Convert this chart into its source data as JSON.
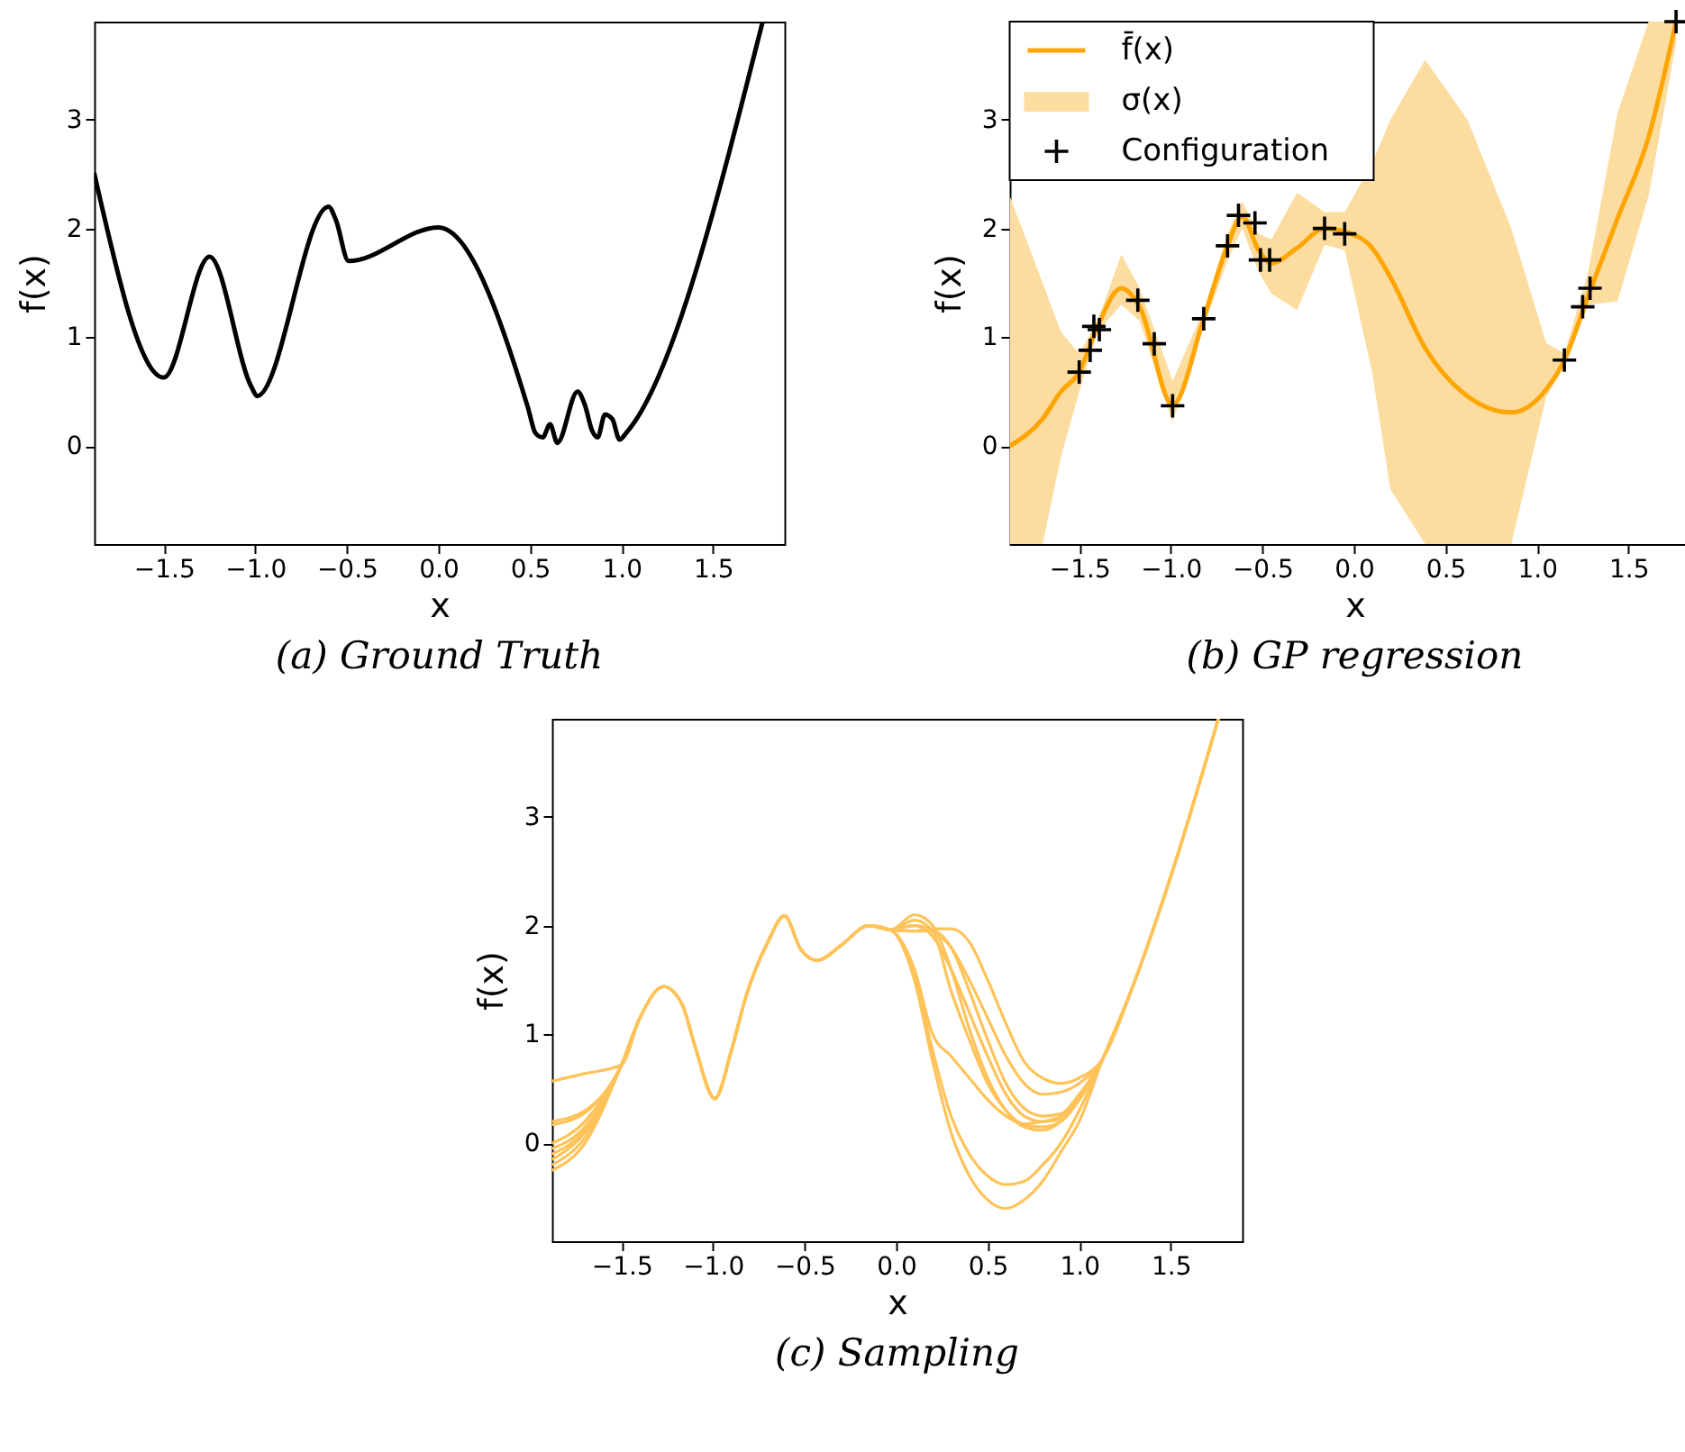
{
  "chart_data": [
    {
      "type": "line",
      "title": "(a) Ground Truth",
      "xlabel": "x",
      "ylabel": "f(x)",
      "xlim": [
        -1.88,
        1.89
      ],
      "ylim": [
        -0.9,
        3.9
      ],
      "grid": false,
      "xticks": [
        {
          "value": -1.5,
          "label": "−1.5"
        },
        {
          "value": -1,
          "label": "−1.0"
        },
        {
          "value": -0.5,
          "label": "−0.5"
        },
        {
          "value": 0,
          "label": "0.0"
        },
        {
          "value": 0.5,
          "label": "0.5"
        },
        {
          "value": 1,
          "label": "1.0"
        },
        {
          "value": 1.5,
          "label": "1.5"
        }
      ],
      "yticks": [
        0,
        1,
        2,
        3
      ],
      "series": [
        {
          "color": "#000000",
          "x": [
            -1.88,
            -1.5,
            -1.25,
            -1.02,
            -0.99,
            -0.6,
            -0.56,
            -0.49,
            0,
            0.49,
            0.53,
            0.57,
            0.61,
            0.65,
            0.76,
            0.8,
            0.84,
            0.87,
            0.91,
            0.95,
            0.99,
            1.03,
            1.77
          ],
          "values": [
            2.51,
            0.63,
            1.74,
            0.54,
            0.46,
            2.2,
            2.08,
            1.7,
            2.01,
            0.35,
            0.12,
            0.08,
            0.2,
            0.03,
            0.5,
            0.38,
            0.14,
            0.08,
            0.29,
            0.25,
            0.06,
            0.13,
            3.89
          ]
        }
      ]
    },
    {
      "type": "line",
      "title": "(b) GP regression",
      "xlabel": "x",
      "ylabel": "f(x)",
      "xlim": [
        -1.88,
        1.89
      ],
      "ylim": [
        -0.9,
        3.9
      ],
      "grid": false,
      "legend": "top left",
      "xticks": [
        {
          "value": -1.5,
          "label": "−1.5"
        },
        {
          "value": -1,
          "label": "−1.0"
        },
        {
          "value": -0.5,
          "label": "−0.5"
        },
        {
          "value": 0,
          "label": "0.0"
        },
        {
          "value": 0.5,
          "label": "0.5"
        },
        {
          "value": 1,
          "label": "1.0"
        },
        {
          "value": 1.5,
          "label": "1.5"
        }
      ],
      "yticks": [
        0,
        1,
        2,
        3
      ],
      "series": [
        {
          "name": "f̄(x)",
          "type": "line",
          "color": "#ffa500",
          "x": [
            -1.88,
            -1.7,
            -1.6,
            -1.5,
            -1.4,
            -1.27,
            -1.17,
            -0.99,
            -0.82,
            -0.69,
            -0.61,
            -0.52,
            -0.45,
            -0.31,
            -0.16,
            -0.05,
            0.1,
            0.2,
            0.39,
            0.62,
            0.86,
            1.05,
            1.15,
            1.28,
            1.44,
            1.61,
            1.76
          ],
          "values": [
            0,
            0.25,
            0.5,
            0.68,
            1.1,
            1.45,
            1.28,
            0.38,
            1.17,
            1.84,
            2.11,
            1.8,
            1.68,
            1.82,
            2.0,
            1.97,
            1.82,
            1.55,
            0.9,
            0.46,
            0.31,
            0.52,
            0.79,
            1.38,
            2.09,
            2.84,
            3.9
          ],
          "lower": [
            -0.9,
            -0.9,
            -0.1,
            0.5,
            1.05,
            1.3,
            1.15,
            0.22,
            1.1,
            1.7,
            2.0,
            1.6,
            1.4,
            1.25,
            1.85,
            1.8,
            0.68,
            -0.4,
            -0.9,
            -0.9,
            -0.9,
            0.45,
            0.73,
            1.3,
            1.33,
            2.3,
            3.7
          ],
          "upper": [
            2.3,
            1.5,
            1.05,
            0.85,
            1.15,
            1.76,
            1.45,
            0.6,
            1.25,
            1.95,
            2.25,
            1.95,
            1.9,
            2.33,
            2.15,
            2.15,
            2.6,
            3.0,
            3.55,
            3.0,
            2.0,
            0.95,
            0.85,
            1.6,
            3.06,
            3.9,
            3.9
          ]
        },
        {
          "name": "σ(x)",
          "type": "area",
          "color": "#fddca0"
        },
        {
          "name": "Configuration",
          "type": "scatter",
          "marker": "cross",
          "color": "#000000",
          "x": [
            -1.5,
            -1.44,
            -1.42,
            -1.39,
            -1.18,
            -1.09,
            -0.99,
            -0.82,
            -0.69,
            -0.63,
            -0.54,
            -0.51,
            -0.46,
            -0.16,
            -0.05,
            1.15,
            1.25,
            1.29,
            1.76
          ],
          "values": [
            0.68,
            0.88,
            1.1,
            1.07,
            1.34,
            0.94,
            0.37,
            1.17,
            1.84,
            2.12,
            2.05,
            1.71,
            1.71,
            2.0,
            1.95,
            0.79,
            1.28,
            1.45,
            3.9
          ]
        }
      ]
    },
    {
      "type": "line",
      "title": "(c) Sampling",
      "xlabel": "x",
      "ylabel": "f(x)",
      "xlim": [
        -1.88,
        1.89
      ],
      "ylim": [
        -0.9,
        3.9
      ],
      "grid": false,
      "xticks": [
        {
          "value": -1.5,
          "label": "−1.5"
        },
        {
          "value": -1,
          "label": "−1.0"
        },
        {
          "value": -0.5,
          "label": "−0.5"
        },
        {
          "value": 0,
          "label": "0.0"
        },
        {
          "value": 0.5,
          "label": "0.5"
        },
        {
          "value": 1,
          "label": "1.0"
        },
        {
          "value": 1.5,
          "label": "1.5"
        }
      ],
      "yticks": [
        0,
        1,
        2,
        3
      ],
      "x": [
        -1.88,
        -1.7,
        -1.5,
        -1.4,
        -1.27,
        -1.17,
        -1.1,
        -0.99,
        -0.9,
        -0.82,
        -0.7,
        -0.61,
        -0.52,
        -0.43,
        -0.3,
        -0.15,
        -0.03,
        0.1,
        0.2,
        0.3,
        0.4,
        0.5,
        0.6,
        0.7,
        0.8,
        0.9,
        1.0,
        1.13,
        1.29,
        1.5,
        1.76
      ],
      "series": [
        {
          "color": "#ffc35a",
          "values": [
            0.57,
            0.64,
            0.72,
            1.15,
            1.44,
            1.28,
            0.9,
            0.41,
            0.85,
            1.35,
            1.85,
            2.09,
            1.78,
            1.68,
            1.82,
            2.0,
            1.96,
            1.5,
            0.75,
            0.1,
            -0.3,
            -0.52,
            -0.6,
            -0.52,
            -0.35,
            -0.08,
            0.2,
            0.78,
            1.43,
            2.45,
            3.9
          ]
        },
        {
          "color": "#ffc35a",
          "values": [
            0.2,
            0.3,
            0.72,
            1.15,
            1.44,
            1.28,
            0.9,
            0.41,
            0.85,
            1.35,
            1.85,
            2.09,
            1.78,
            1.68,
            1.82,
            2.0,
            1.96,
            1.55,
            0.85,
            0.25,
            -0.1,
            -0.3,
            -0.38,
            -0.35,
            -0.2,
            0.0,
            0.3,
            0.78,
            1.43,
            2.45,
            3.9
          ]
        },
        {
          "color": "#ffc35a",
          "values": [
            0.17,
            0.28,
            0.72,
            1.15,
            1.44,
            1.28,
            0.9,
            0.41,
            0.85,
            1.35,
            1.85,
            2.09,
            1.78,
            1.68,
            1.82,
            2.0,
            1.96,
            2.1,
            2.0,
            1.6,
            1.05,
            0.6,
            0.3,
            0.15,
            0.12,
            0.2,
            0.4,
            0.78,
            1.43,
            2.45,
            3.9
          ]
        },
        {
          "color": "#ffc35a",
          "values": [
            0.0,
            0.2,
            0.72,
            1.15,
            1.44,
            1.28,
            0.9,
            0.41,
            0.85,
            1.35,
            1.85,
            2.09,
            1.78,
            1.68,
            1.82,
            2.0,
            1.96,
            2.05,
            1.95,
            1.4,
            0.95,
            0.55,
            0.3,
            0.17,
            0.15,
            0.2,
            0.4,
            0.78,
            1.43,
            2.45,
            3.9
          ]
        },
        {
          "color": "#ffc35a",
          "values": [
            -0.05,
            0.15,
            0.72,
            1.15,
            1.44,
            1.28,
            0.9,
            0.41,
            0.85,
            1.35,
            1.85,
            2.09,
            1.78,
            1.68,
            1.82,
            2.0,
            1.96,
            2.0,
            1.9,
            1.6,
            1.2,
            0.8,
            0.45,
            0.25,
            0.2,
            0.22,
            0.4,
            0.78,
            1.43,
            2.45,
            3.9
          ]
        },
        {
          "color": "#ffc35a",
          "values": [
            -0.1,
            0.12,
            0.72,
            1.15,
            1.44,
            1.28,
            0.9,
            0.41,
            0.85,
            1.35,
            1.85,
            2.09,
            1.78,
            1.68,
            1.82,
            2.0,
            1.96,
            1.95,
            1.95,
            1.8,
            1.4,
            0.95,
            0.55,
            0.32,
            0.25,
            0.27,
            0.45,
            0.78,
            1.43,
            2.45,
            3.9
          ]
        },
        {
          "color": "#ffc35a",
          "values": [
            -0.15,
            0.1,
            0.72,
            1.15,
            1.44,
            1.28,
            0.9,
            0.41,
            0.85,
            1.35,
            1.85,
            2.09,
            1.78,
            1.68,
            1.82,
            2.0,
            1.96,
            1.6,
            1.0,
            0.8,
            0.6,
            0.4,
            0.25,
            0.18,
            0.2,
            0.25,
            0.42,
            0.78,
            1.43,
            2.45,
            3.9
          ]
        },
        {
          "color": "#ffc35a",
          "values": [
            -0.2,
            0.05,
            0.72,
            1.15,
            1.44,
            1.28,
            0.9,
            0.41,
            0.85,
            1.35,
            1.85,
            2.09,
            1.78,
            1.68,
            1.82,
            2.0,
            1.96,
            1.95,
            1.97,
            1.97,
            1.85,
            1.5,
            1.1,
            0.75,
            0.6,
            0.55,
            0.6,
            0.78,
            1.43,
            2.45,
            3.9
          ]
        },
        {
          "color": "#ffc35a",
          "values": [
            -0.25,
            0.0,
            0.72,
            1.15,
            1.44,
            1.28,
            0.9,
            0.41,
            0.85,
            1.35,
            1.85,
            2.09,
            1.78,
            1.68,
            1.82,
            2.0,
            1.96,
            2.0,
            1.95,
            1.8,
            1.5,
            1.15,
            0.8,
            0.55,
            0.45,
            0.47,
            0.55,
            0.78,
            1.43,
            2.45,
            3.9
          ]
        }
      ]
    }
  ]
}
